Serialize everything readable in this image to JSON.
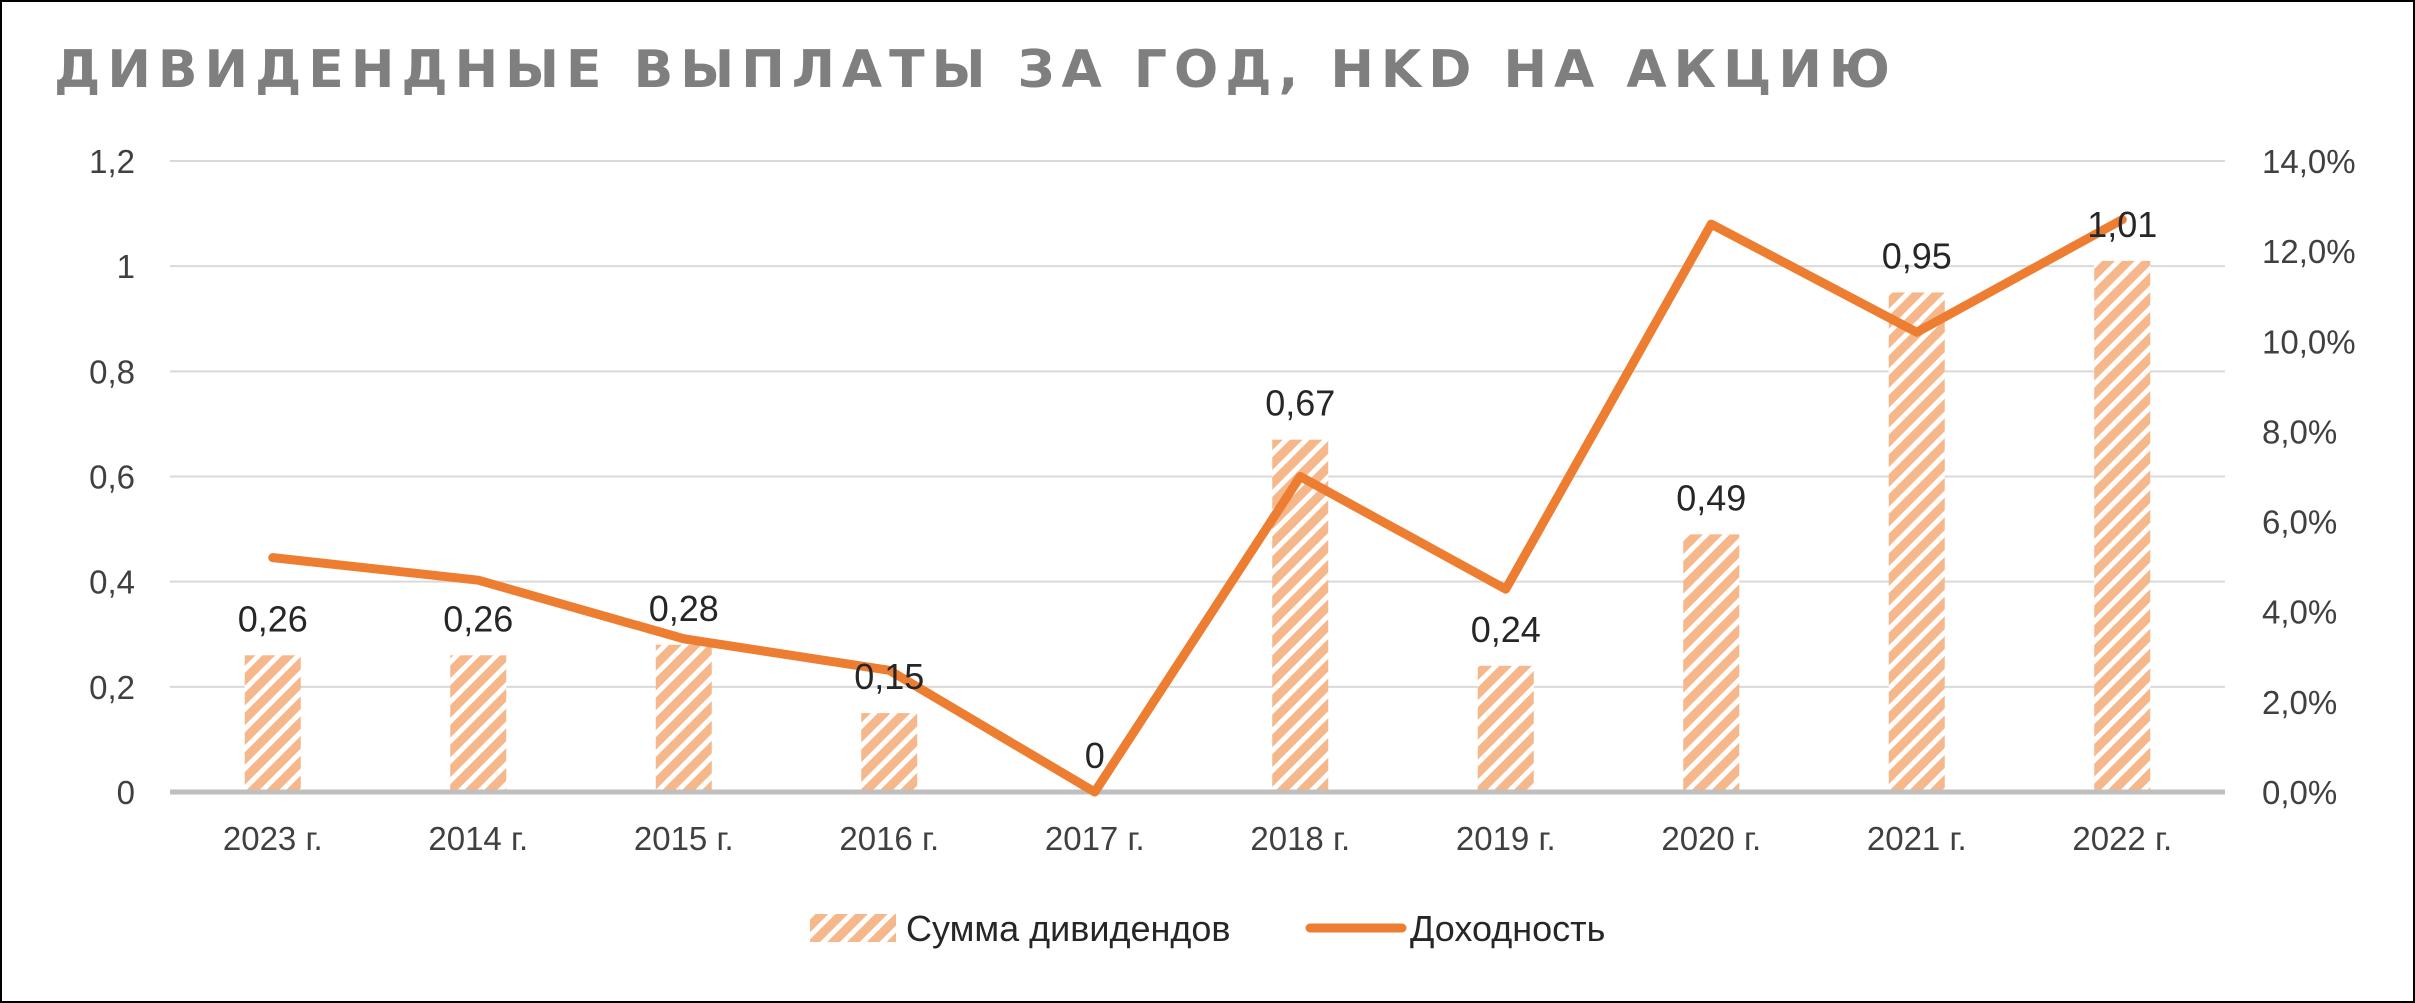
{
  "chart_data": {
    "type": "bar",
    "title": "ДИВИДЕНДНЫЕ ВЫПЛАТЫ ЗА ГОД, HKD НА АКЦИЮ",
    "categories": [
      "2023 г.",
      "2014 г.",
      "2015 г.",
      "2016 г.",
      "2017 г.",
      "2018 г.",
      "2019 г.",
      "2020 г.",
      "2021 г.",
      "2022 г."
    ],
    "series": [
      {
        "name": "Сумма дивидендов",
        "type": "bar",
        "axis": "left",
        "values": [
          0.26,
          0.26,
          0.28,
          0.15,
          0,
          0.67,
          0.24,
          0.49,
          0.95,
          1.01
        ],
        "labels": [
          "0,26",
          "0,26",
          "0,28",
          "0,15",
          "0",
          "0,67",
          "0,24",
          "0,49",
          "0,95",
          "1,01"
        ]
      },
      {
        "name": "Доходность",
        "type": "line",
        "axis": "right",
        "values": [
          5.2,
          4.7,
          3.4,
          2.7,
          0.0,
          7.0,
          4.5,
          12.6,
          10.2,
          12.7
        ]
      }
    ],
    "y_left": {
      "ylim": [
        0,
        1.2
      ],
      "ticks": [
        0,
        0.2,
        0.4,
        0.6,
        0.8,
        1,
        1.2
      ],
      "tick_labels": [
        "0",
        "0,2",
        "0,4",
        "0,6",
        "0,8",
        "1",
        "1,2"
      ]
    },
    "y_right": {
      "ylim": [
        0,
        14
      ],
      "ticks": [
        0,
        2,
        4,
        6,
        8,
        10,
        12,
        14
      ],
      "tick_labels": [
        "0,0%",
        "2,0%",
        "4,0%",
        "6,0%",
        "8,0%",
        "10,0%",
        "12,0%",
        "14,0%"
      ]
    },
    "grid": true,
    "legend": "bottom",
    "colors": {
      "bar_fill": "#f6b78b",
      "bar_stripe": "#ffffff",
      "line": "#ed7d31",
      "grid": "#d9d9d9",
      "axis": "#bfbfbf",
      "title": "#7f7f7f"
    }
  }
}
